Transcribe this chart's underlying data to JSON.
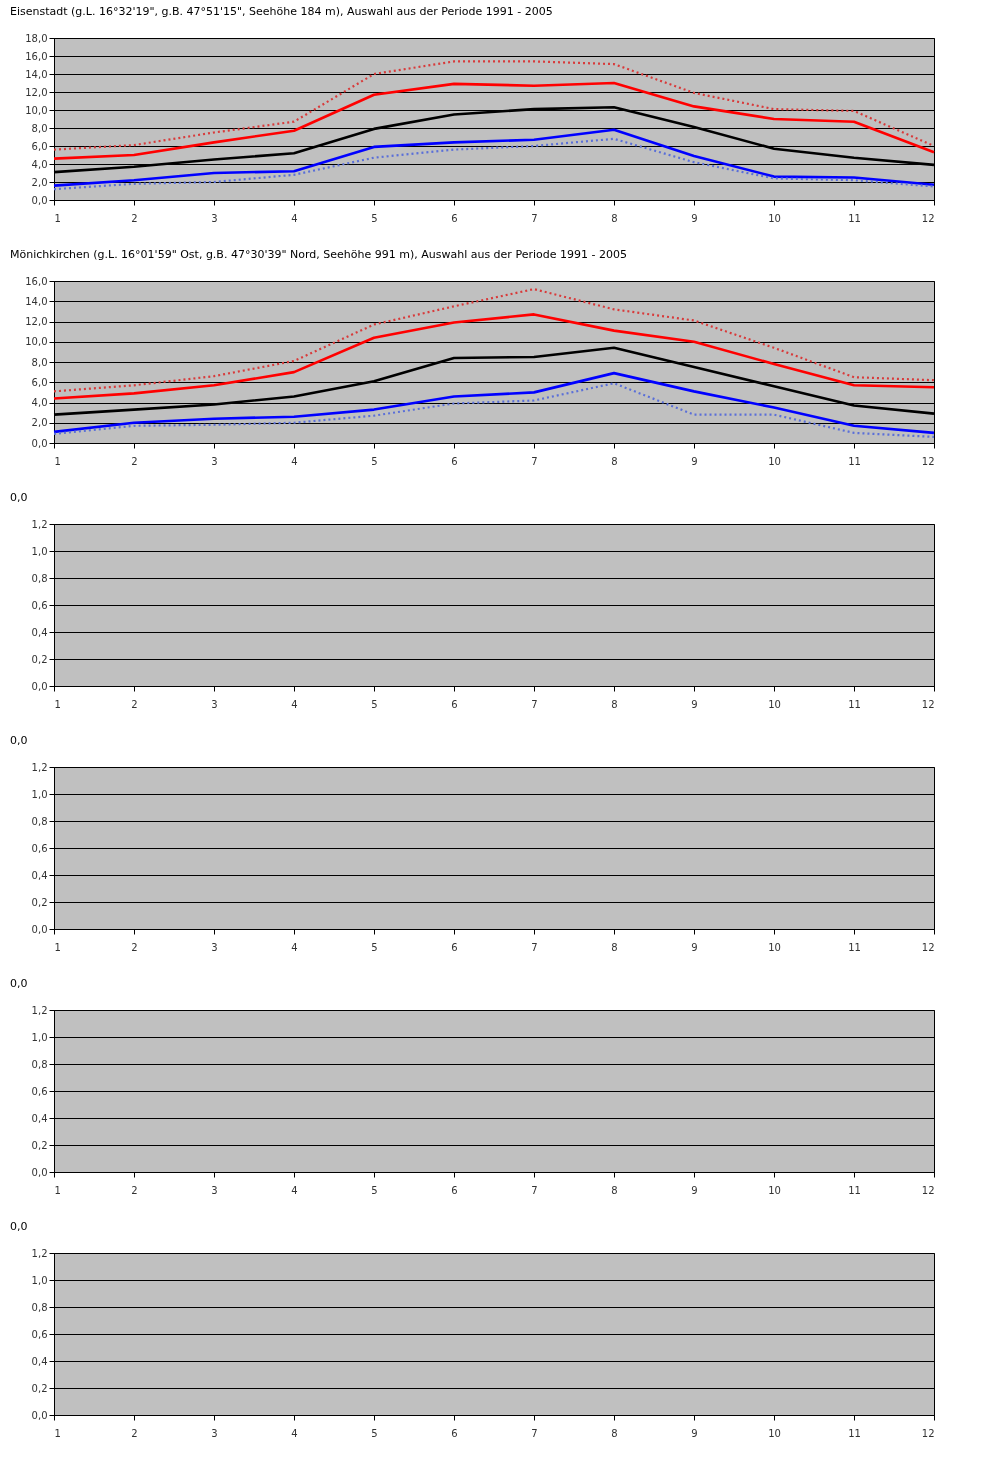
{
  "chart_data": [
    {
      "type": "line",
      "title": "Eisenstadt (g.L. 16°32'19\", g.B. 47°51'15\", Seehöhe 184 m), Auswahl aus der Periode 1991 - 2005",
      "x": [
        1,
        2,
        3,
        4,
        5,
        6,
        7,
        8,
        9,
        10,
        11,
        12
      ],
      "xlim": [
        1,
        12
      ],
      "xticks": [
        1,
        2,
        3,
        4,
        5,
        6,
        7,
        8,
        9,
        10,
        11,
        12
      ],
      "ylim": [
        0,
        18
      ],
      "yticks": [
        {
          "value": 0,
          "label": "0,0"
        },
        {
          "value": 2,
          "label": "2,0"
        },
        {
          "value": 4,
          "label": "4,0"
        },
        {
          "value": 6,
          "label": "6,0"
        },
        {
          "value": 8,
          "label": "8,0"
        },
        {
          "value": 10,
          "label": "10,0"
        },
        {
          "value": 12,
          "label": "12,0"
        },
        {
          "value": 14,
          "label": "14,0"
        },
        {
          "value": 16,
          "label": "16,0"
        },
        {
          "value": 18,
          "label": "18,0"
        }
      ],
      "grid": "y",
      "series": [
        {
          "color": "#d83a3a",
          "line_style": "dotted",
          "values": [
            5.6,
            6.1,
            7.5,
            8.7,
            14.0,
            15.4,
            15.4,
            15.1,
            11.9,
            10.1,
            9.9,
            6.0
          ]
        },
        {
          "color": "#ff0000",
          "line_style": "solid",
          "values": [
            4.6,
            5.0,
            6.4,
            7.7,
            11.7,
            12.9,
            12.7,
            13.0,
            10.4,
            9.0,
            8.7,
            5.3
          ]
        },
        {
          "color": "#000000",
          "line_style": "solid",
          "values": [
            3.1,
            3.7,
            4.5,
            5.2,
            7.9,
            9.5,
            10.1,
            10.3,
            8.1,
            5.7,
            4.7,
            3.9
          ]
        },
        {
          "color": "#0000ff",
          "line_style": "solid",
          "values": [
            1.6,
            2.2,
            3.0,
            3.2,
            5.9,
            6.4,
            6.7,
            7.8,
            4.9,
            2.6,
            2.5,
            1.7
          ]
        },
        {
          "color": "#5a6fd8",
          "line_style": "dotted",
          "values": [
            1.2,
            1.8,
            2.0,
            2.8,
            4.7,
            5.6,
            6.0,
            6.8,
            4.2,
            2.4,
            2.2,
            1.5
          ]
        }
      ]
    },
    {
      "type": "line",
      "title": "Mönichkirchen (g.L. 16°01'59\" Ost, g.B. 47°30'39\" Nord, Seehöhe 991 m), Auswahl aus der Periode 1991 - 2005",
      "x": [
        1,
        2,
        3,
        4,
        5,
        6,
        7,
        8,
        9,
        10,
        11,
        12
      ],
      "xlim": [
        1,
        12
      ],
      "xticks": [
        1,
        2,
        3,
        4,
        5,
        6,
        7,
        8,
        9,
        10,
        11,
        12
      ],
      "ylim": [
        0,
        16
      ],
      "yticks": [
        {
          "value": 0,
          "label": "0,0"
        },
        {
          "value": 2,
          "label": "2,0"
        },
        {
          "value": 4,
          "label": "4,0"
        },
        {
          "value": 6,
          "label": "6,0"
        },
        {
          "value": 8,
          "label": "8,0"
        },
        {
          "value": 10,
          "label": "10,0"
        },
        {
          "value": 12,
          "label": "12,0"
        },
        {
          "value": 14,
          "label": "14,0"
        },
        {
          "value": 16,
          "label": "16,0"
        }
      ],
      "grid": "y",
      "series": [
        {
          "color": "#d83a3a",
          "line_style": "dotted",
          "values": [
            5.1,
            5.7,
            6.6,
            8.1,
            11.7,
            13.5,
            15.2,
            13.2,
            12.1,
            9.4,
            6.5,
            6.2
          ]
        },
        {
          "color": "#ff0000",
          "line_style": "solid",
          "values": [
            4.4,
            4.9,
            5.7,
            7.0,
            10.4,
            11.9,
            12.7,
            11.1,
            10.0,
            7.8,
            5.7,
            5.5
          ]
        },
        {
          "color": "#000000",
          "line_style": "solid",
          "values": [
            2.8,
            3.3,
            3.8,
            4.6,
            6.1,
            8.4,
            8.5,
            9.4,
            7.5,
            5.6,
            3.7,
            2.9
          ]
        },
        {
          "color": "#0000ff",
          "line_style": "solid",
          "values": [
            1.1,
            2.0,
            2.4,
            2.6,
            3.3,
            4.6,
            5.0,
            6.9,
            5.1,
            3.5,
            1.7,
            1.0
          ]
        },
        {
          "color": "#5a6fd8",
          "line_style": "dotted",
          "values": [
            0.9,
            1.7,
            1.8,
            2.0,
            2.7,
            3.9,
            4.2,
            5.9,
            2.8,
            2.8,
            1.0,
            0.6
          ]
        }
      ]
    },
    {
      "type": "line",
      "title": "0,0",
      "xlim": [
        1,
        12
      ],
      "xticks": [
        1,
        2,
        3,
        4,
        5,
        6,
        7,
        8,
        9,
        10,
        11,
        12
      ],
      "ylim": [
        0,
        1.2
      ],
      "yticks": [
        {
          "value": 0,
          "label": "0,0"
        },
        {
          "value": 0.2,
          "label": "0,2"
        },
        {
          "value": 0.4,
          "label": "0,4"
        },
        {
          "value": 0.6,
          "label": "0,6"
        },
        {
          "value": 0.8,
          "label": "0,8"
        },
        {
          "value": 1,
          "label": "1,0"
        },
        {
          "value": 1.2,
          "label": "1,2"
        }
      ],
      "grid": "y"
    },
    {
      "type": "line",
      "title": "0,0",
      "xlim": [
        1,
        12
      ],
      "xticks": [
        1,
        2,
        3,
        4,
        5,
        6,
        7,
        8,
        9,
        10,
        11,
        12
      ],
      "ylim": [
        0,
        1.2
      ],
      "yticks": [
        {
          "value": 0,
          "label": "0,0"
        },
        {
          "value": 0.2,
          "label": "0,2"
        },
        {
          "value": 0.4,
          "label": "0,4"
        },
        {
          "value": 0.6,
          "label": "0,6"
        },
        {
          "value": 0.8,
          "label": "0,8"
        },
        {
          "value": 1,
          "label": "1,0"
        },
        {
          "value": 1.2,
          "label": "1,2"
        }
      ],
      "grid": "y"
    },
    {
      "type": "line",
      "title": "0,0",
      "xlim": [
        1,
        12
      ],
      "xticks": [
        1,
        2,
        3,
        4,
        5,
        6,
        7,
        8,
        9,
        10,
        11,
        12
      ],
      "ylim": [
        0,
        1.2
      ],
      "yticks": [
        {
          "value": 0,
          "label": "0,0"
        },
        {
          "value": 0.2,
          "label": "0,2"
        },
        {
          "value": 0.4,
          "label": "0,4"
        },
        {
          "value": 0.6,
          "label": "0,6"
        },
        {
          "value": 0.8,
          "label": "0,8"
        },
        {
          "value": 1,
          "label": "1,0"
        },
        {
          "value": 1.2,
          "label": "1,2"
        }
      ],
      "grid": "y"
    },
    {
      "type": "line",
      "title": "0,0",
      "xlim": [
        1,
        12
      ],
      "xticks": [
        1,
        2,
        3,
        4,
        5,
        6,
        7,
        8,
        9,
        10,
        11,
        12
      ],
      "ylim": [
        0,
        1.2
      ],
      "yticks": [
        {
          "value": 0,
          "label": "0,0"
        },
        {
          "value": 0.2,
          "label": "0,2"
        },
        {
          "value": 0.4,
          "label": "0,4"
        },
        {
          "value": 0.6,
          "label": "0,6"
        },
        {
          "value": 0.8,
          "label": "0,8"
        },
        {
          "value": 1,
          "label": "1,0"
        },
        {
          "value": 1.2,
          "label": "1,2"
        }
      ],
      "grid": "y"
    }
  ]
}
